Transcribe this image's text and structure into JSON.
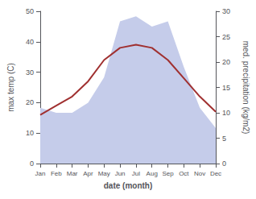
{
  "chart_data": {
    "type": "line",
    "categories": [
      "Jan",
      "Feb",
      "Mar",
      "Apr",
      "May",
      "Jun",
      "Jul",
      "Aug",
      "Sep",
      "Oct",
      "Nov",
      "Dec"
    ],
    "xlabel": "date (month)",
    "ylabel": "max temp (C)",
    "y2label": "med. precipitation (kg/m2)",
    "series": [
      {
        "type": "area",
        "color": "#c5ccea",
        "axis": "y2",
        "values": [
          11,
          10,
          10,
          12,
          17,
          28,
          29,
          27,
          28,
          19,
          11,
          7
        ]
      },
      {
        "type": "line",
        "color": "#a03030",
        "values": [
          16,
          19,
          22,
          27,
          34,
          38,
          39,
          38,
          34,
          28,
          22,
          17
        ]
      }
    ],
    "ylim": [
      0,
      50
    ],
    "yticks": [
      0,
      10,
      20,
      30,
      40,
      50
    ],
    "y2lim": [
      0,
      30
    ],
    "y2ticks": [
      0,
      5,
      10,
      15,
      20,
      25,
      30
    ],
    "grid": false
  }
}
